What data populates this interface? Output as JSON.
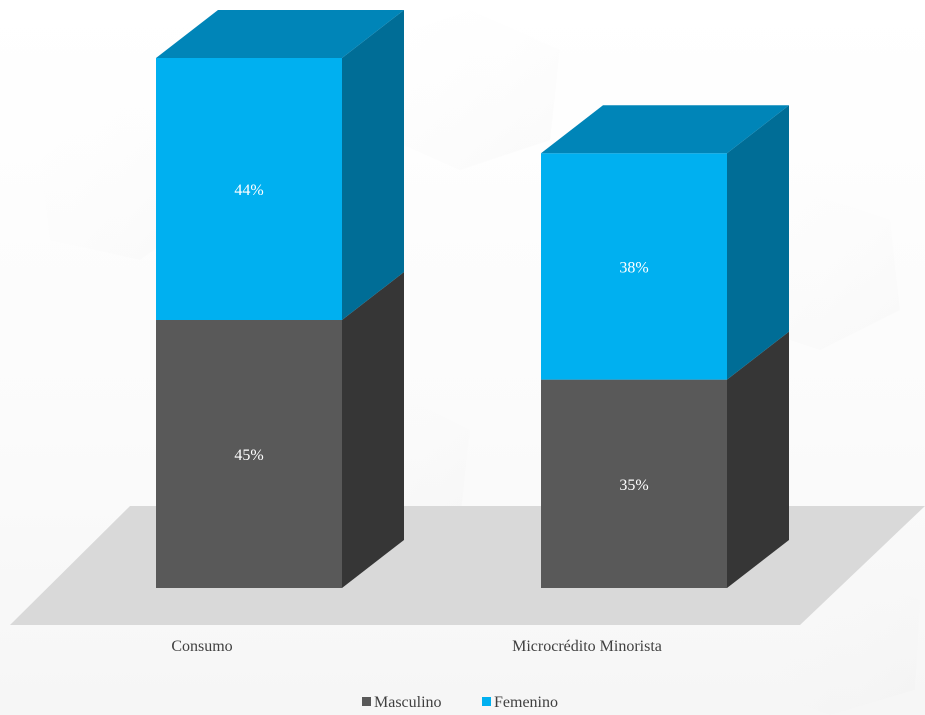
{
  "colors": {
    "masculino_front": "#595959",
    "masculino_side": "#363636",
    "femenino_front": "#00b0f0",
    "femenino_top": "#0085b8",
    "femenino_side": "#006d96",
    "floor": "#d9d9d9",
    "text": "#404040",
    "value_text": "#ffffff"
  },
  "chart_data": {
    "type": "bar",
    "stacked": true,
    "style": "3d",
    "categories": [
      "Consumo",
      "Microcrédito Minorista"
    ],
    "series": [
      {
        "name": "Masculino",
        "values": [
          45,
          35
        ],
        "labels": [
          "45%",
          "35%"
        ]
      },
      {
        "name": "Femenino",
        "values": [
          44,
          38
        ],
        "labels": [
          "44%",
          "38%"
        ]
      }
    ],
    "ylim": [
      0,
      89
    ],
    "legend": "bottom",
    "grid": false,
    "title": "",
    "xlabel": "",
    "ylabel": ""
  }
}
